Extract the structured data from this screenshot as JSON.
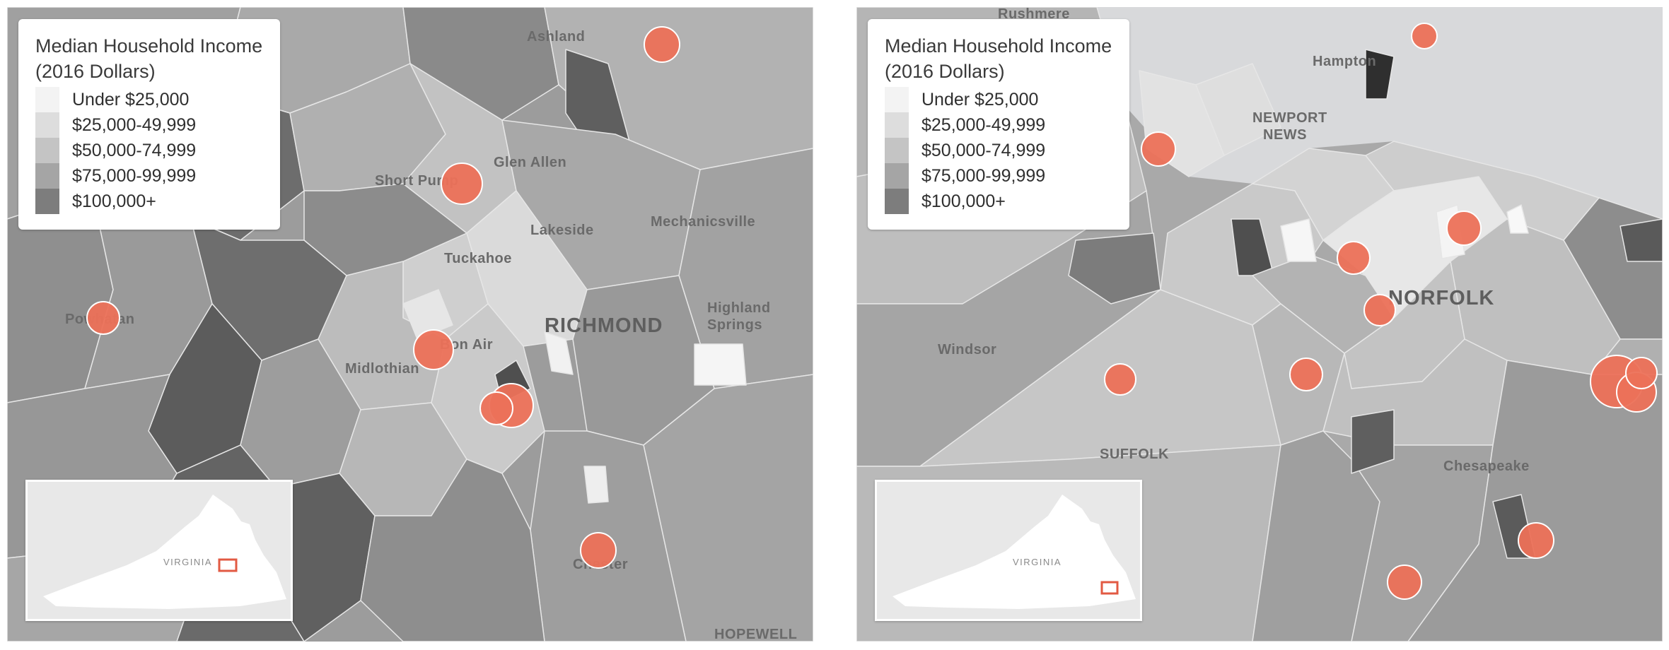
{
  "legend": {
    "title_line1": "Median Household Income",
    "title_line2": "(2016 Dollars)",
    "bins": [
      {
        "label": "Under $25,000",
        "color": "#f3f3f3"
      },
      {
        "label": "$25,000-49,999",
        "color": "#dddddd"
      },
      {
        "label": "$50,000-74,999",
        "color": "#c4c4c4"
      },
      {
        "label": "$75,000-99,999",
        "color": "#a5a5a5"
      },
      {
        "label": "$100,000+",
        "color": "#7d7d7d"
      }
    ]
  },
  "marker_color": "#ec7159",
  "inset_label": "VIRGINIA",
  "richmond_map": {
    "places": {
      "ashland": "Ashland",
      "glen_allen": "Glen Allen",
      "short_pump": "Short Pump",
      "lakeside": "Lakeside",
      "mechanicsville": "Mechanicsville",
      "tuckahoe": "Tuckahoe",
      "highland_springs_1": "Highland",
      "highland_springs_2": "Springs",
      "richmond": "RICHMOND",
      "powhatan": "Powhatan",
      "midlothian": "Midlothian",
      "bon_air": "Bon Air",
      "chester": "Chester",
      "hopewell": "HOPEWELL"
    }
  },
  "norfolk_map": {
    "places": {
      "rushmere": "Rushmere",
      "hampton": "Hampton",
      "newport_1": "NEWPORT",
      "newport_2": "NEWS",
      "windsor": "Windsor",
      "norfolk": "NORFOLK",
      "suffolk": "SUFFOLK",
      "chesapeake": "Chesapeake"
    }
  }
}
